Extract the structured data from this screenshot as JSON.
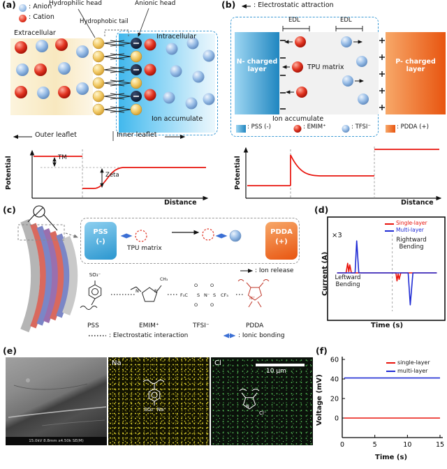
{
  "panel_a": {
    "label": "(a)",
    "legend": {
      "anion": ": Anion",
      "cation": ": Cation"
    },
    "hydrophilic_head": "Hydrophilic head",
    "anionic_head": "Anionic head",
    "hydrophobic_tail": "Hydrophobic tail",
    "extracellular": "Extracellular",
    "intracellular": "Intracellular",
    "ion_accumulate": "Ion accumulate",
    "outer_leaflet": "Outer leaflet",
    "inner_leaflet": "Inner leaflet",
    "plot": {
      "ylabel": "Potential",
      "xlabel": "Distance",
      "tm": "TM",
      "zeta": "Zeta"
    }
  },
  "panel_b": {
    "label": "(b)",
    "attraction_note": ": Electrostatic attraction",
    "edl": "EDL",
    "n_layer": "N- charged layer",
    "tpu": "TPU matrix",
    "p_layer": "P- charged layer",
    "ion_accumulate": "Ion accumulate",
    "legend": {
      "pss": ": PSS (-)",
      "emim": ": EMIM⁺",
      "tfsi": ": TFSI⁻",
      "pdda": ": PDDA (+)"
    },
    "plot": {
      "ylabel": "Potential",
      "xlabel": "Distance"
    }
  },
  "panel_c": {
    "label": "(c)",
    "pss_box": {
      "l1": "PSS",
      "l2": "(-)"
    },
    "tpu": "TPU matrix",
    "pdda_box": {
      "l1": "PDDA",
      "l2": "(+)"
    },
    "ion_release": ": Ion release",
    "structures": {
      "pss": "PSS",
      "emim": "EMIM⁺",
      "tfsi": "TFSI⁻",
      "pdda": "PDDA"
    },
    "atoms": {
      "so3": "SO₃⁻",
      "n": "N",
      "n_plus": "N⁺",
      "n_minus": "N⁻",
      "ch3": "CH₃",
      "s": "S",
      "o": "O",
      "f3c": "F₃C",
      "cf3": "CF₃"
    },
    "electrostatic_note": ": Electrostatic interaction",
    "ionic_note": ": Ionic bonding"
  },
  "panel_d": {
    "label": "(d)",
    "x3": "×3",
    "leftward": "Leftward\nBending",
    "rightward": "Rightward\nBending",
    "legend": {
      "single": "Single-layer",
      "multi": "Multi-layer"
    },
    "xlabel": "Time (s)",
    "ylabel": "Current (A)"
  },
  "panel_e": {
    "label": "(e)",
    "na": "Na",
    "cl": "Cl",
    "scalebar": "10 μm",
    "sem_bar": "15.0kV 8.8mm x4.50k SE(M)",
    "na_struct": "SO₃⁻ Na⁺",
    "cl_n": "N",
    "cl_cl": "Cl⁻"
  },
  "panel_f": {
    "label": "(f)",
    "legend": {
      "single": "single-layer",
      "multi": "multi-layer"
    },
    "xlabel": "Time (s)",
    "ylabel": "Voltage (mV)"
  },
  "chart_data": [
    {
      "id": "d",
      "type": "line",
      "xlabel": "Time (s)",
      "ylabel": "Current (A)",
      "axis_note": "no tick labels shown; current in arbitrary units (single-layer trace magnified ×3)",
      "annotations": [
        "×3",
        "Leftward Bending",
        "Rightward Bending"
      ],
      "xlim": [
        0,
        10
      ],
      "ylim": [
        -1.2,
        1.2
      ],
      "divider_x": 5.5,
      "legend_position": "top-right",
      "series": [
        {
          "name": "Single-layer",
          "color": "#e8130c",
          "points": [
            [
              0.3,
              0
            ],
            [
              1.15,
              0
            ],
            [
              1.3,
              0.3
            ],
            [
              1.4,
              0.04
            ],
            [
              1.5,
              0.25
            ],
            [
              1.65,
              0
            ],
            [
              5.85,
              0
            ],
            [
              5.95,
              -0.25
            ],
            [
              6.05,
              -0.03
            ],
            [
              6.15,
              -0.2
            ],
            [
              6.3,
              0
            ],
            [
              9.7,
              0
            ]
          ]
        },
        {
          "name": "Multi-layer",
          "color": "#1f2bd4",
          "points": [
            [
              0.3,
              0
            ],
            [
              2.0,
              0
            ],
            [
              2.15,
              1.0
            ],
            [
              2.35,
              0
            ],
            [
              7.0,
              0
            ],
            [
              7.2,
              -1.0
            ],
            [
              7.45,
              0
            ],
            [
              9.7,
              0
            ]
          ]
        }
      ]
    },
    {
      "id": "f",
      "type": "line",
      "xlabel": "Time (s)",
      "ylabel": "Voltage (mV)",
      "xticks": [
        0,
        5,
        10,
        15
      ],
      "yticks": [
        0,
        20,
        40,
        60
      ],
      "xlim": [
        0,
        15
      ],
      "ylim": [
        -20,
        60
      ],
      "legend_position": "top-right",
      "series": [
        {
          "name": "single-layer",
          "color": "#e8130c",
          "points": [
            [
              0.3,
              0
            ],
            [
              15,
              0
            ]
          ]
        },
        {
          "name": "multi-layer",
          "color": "#1f2bd4",
          "points": [
            [
              0.3,
              41
            ],
            [
              15,
              41
            ]
          ]
        }
      ]
    },
    {
      "id": "a_potential",
      "type": "line",
      "xlabel": "Distance",
      "ylabel": "Potential",
      "axis_note": "schematic sketch, no tick labels; normalized coordinates",
      "annotations": [
        "TM",
        "Zeta"
      ],
      "series": [
        {
          "name": "membrane potential",
          "color": "#e8130c",
          "points": [
            [
              0,
              0.82
            ],
            [
              0.29,
              0.82
            ],
            [
              0.29,
              0.2
            ],
            [
              0.35,
              0.2
            ],
            [
              0.5,
              0.58
            ],
            [
              0.62,
              0.6
            ],
            [
              1,
              0.6
            ]
          ]
        }
      ]
    },
    {
      "id": "b_potential",
      "type": "line",
      "xlabel": "Distance",
      "ylabel": "Potential",
      "axis_note": "schematic sketch, no tick labels; normalized coordinates",
      "series": [
        {
          "name": "device potential",
          "color": "#e8130c",
          "points": [
            [
              0,
              0.25
            ],
            [
              0.23,
              0.25
            ],
            [
              0.23,
              0.85
            ],
            [
              0.4,
              0.45
            ],
            [
              0.66,
              0.45
            ],
            [
              0.66,
              0.95
            ],
            [
              1,
              0.95
            ]
          ]
        }
      ]
    }
  ]
}
